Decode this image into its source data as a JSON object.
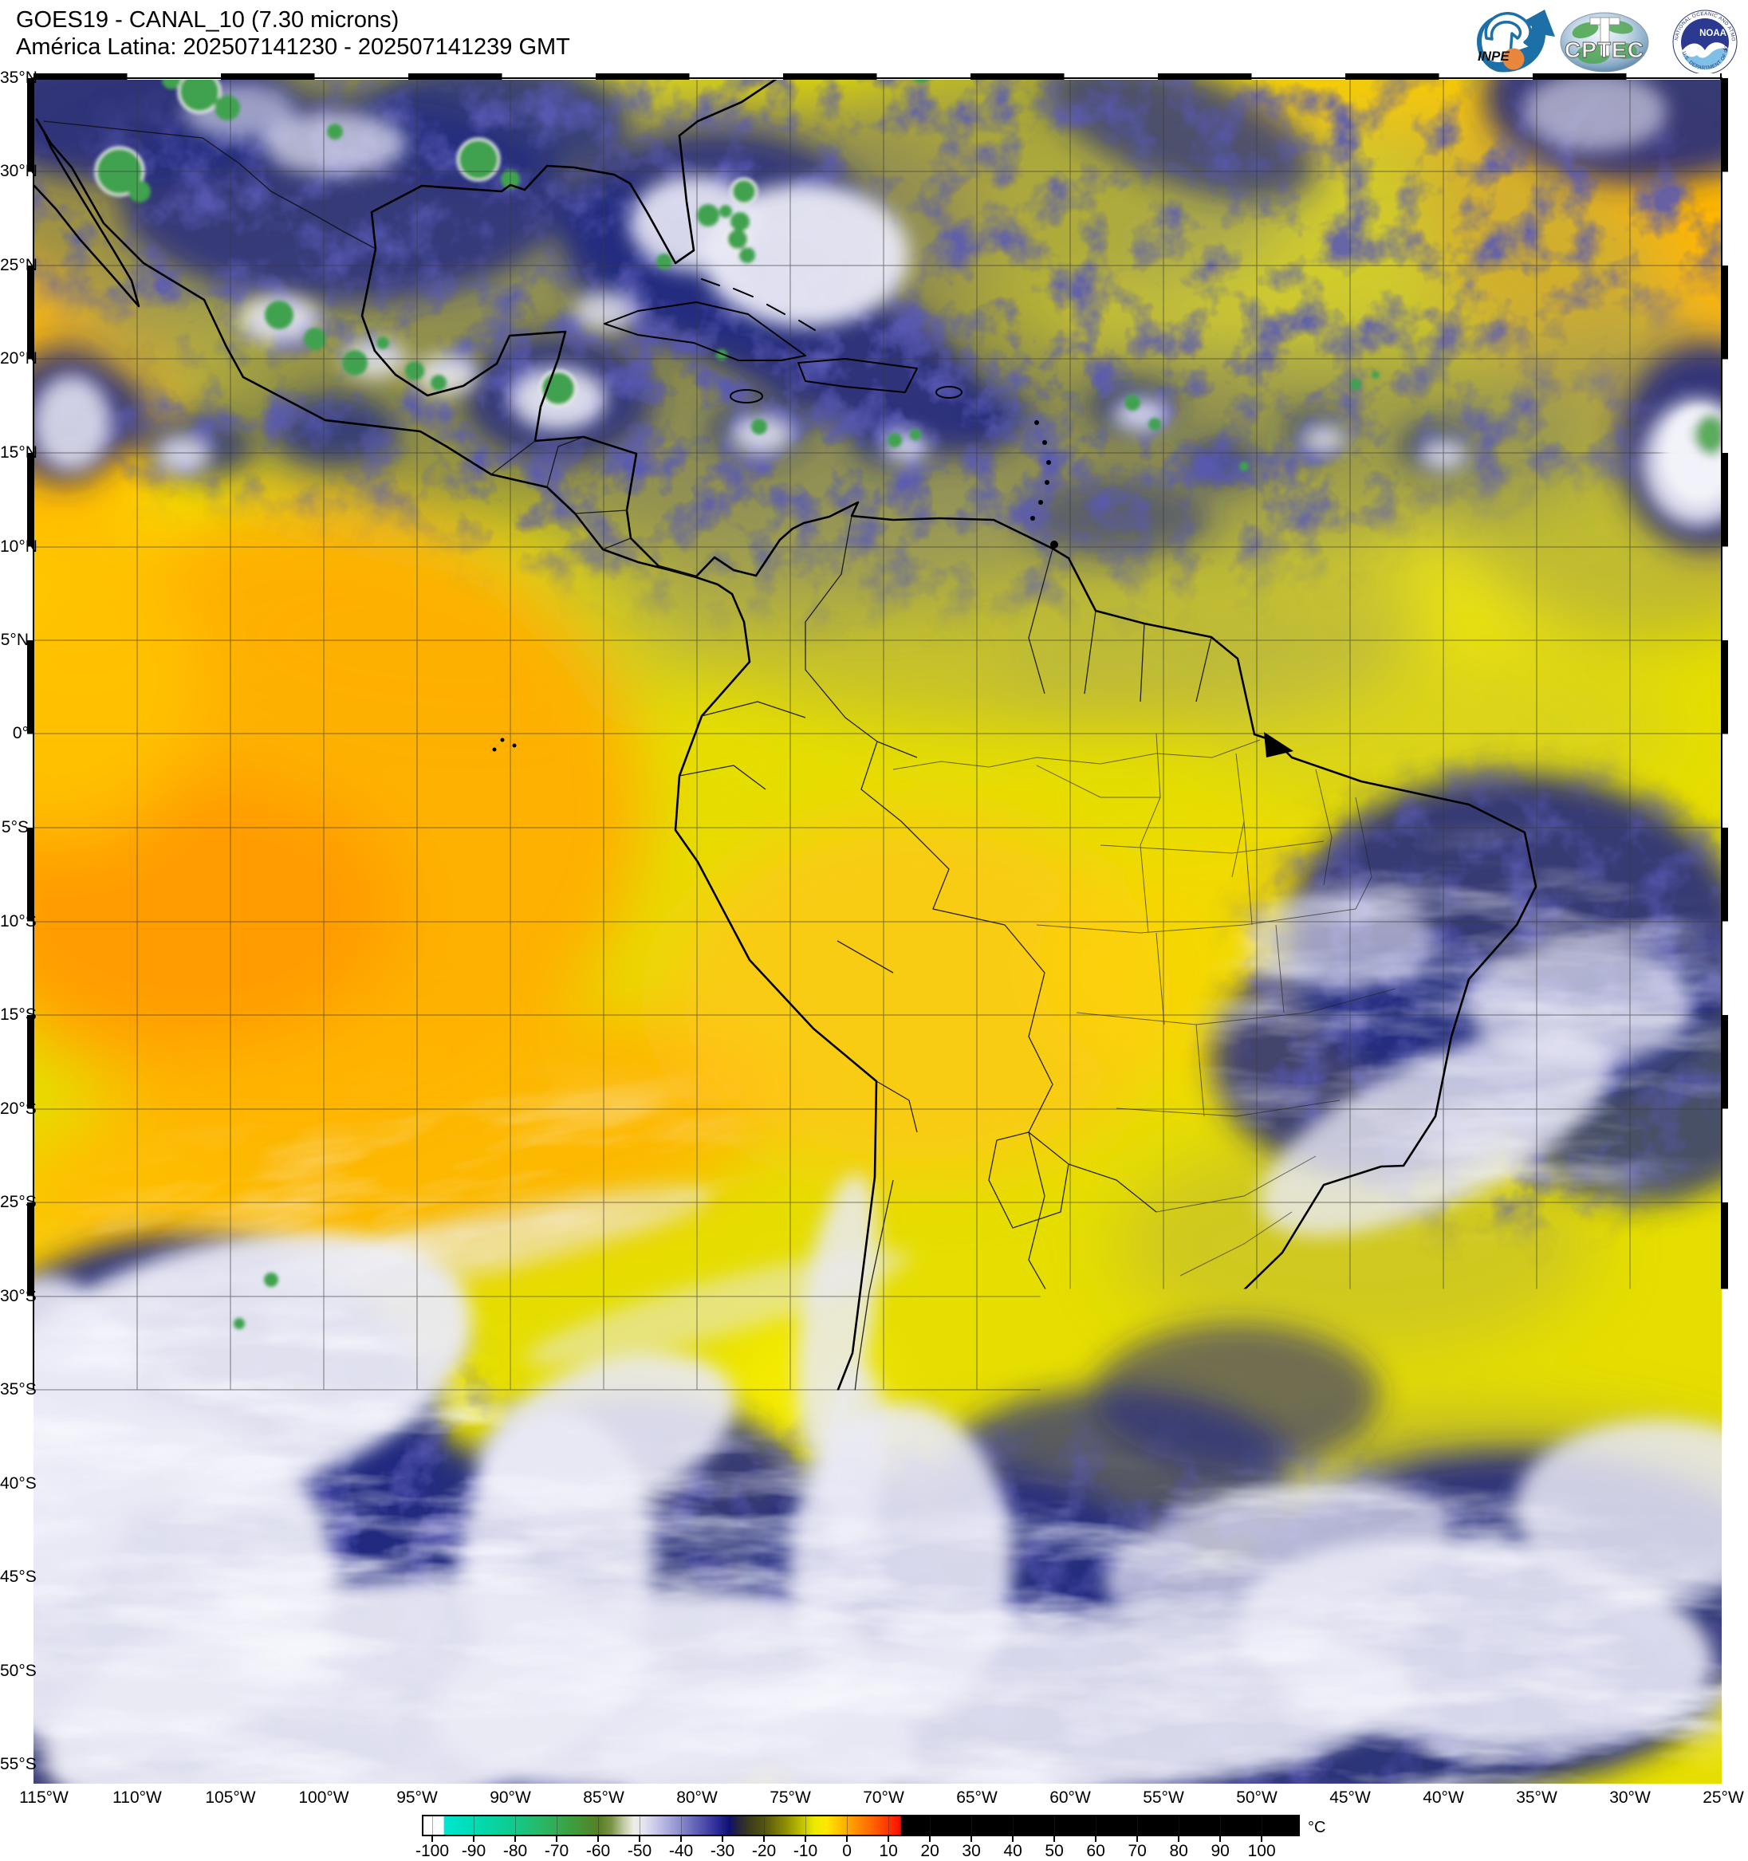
{
  "header": {
    "line1": "GOES19 - CANAL_10 (7.30 microns)",
    "line2": "América Latina: 202507141230 - 202507141239 GMT"
  },
  "logos": {
    "inpe_label": "INPE",
    "cptec_label": "CPTEC",
    "noaa_label": "NOAA",
    "noaa_ring_top": "NATIONAL OCEANIC AND ATMOSPHERIC ADMINISTRATION",
    "noaa_ring_bottom": "U.S. DEPARTMENT OF COMMERCE"
  },
  "map": {
    "lat_labels": [
      "35°N",
      "30°N",
      "25°N",
      "20°N",
      "15°N",
      "10°N",
      "5°N",
      "0°",
      "5°S",
      "10°S",
      "15°S",
      "20°S",
      "25°S",
      "30°S",
      "35°S",
      "40°S",
      "45°S",
      "50°S",
      "55°S"
    ],
    "lon_labels": [
      "115°W",
      "110°W",
      "105°W",
      "100°W",
      "95°W",
      "90°W",
      "85°W",
      "80°W",
      "75°W",
      "70°W",
      "65°W",
      "60°W",
      "55°W",
      "50°W",
      "45°W",
      "40°W",
      "35°W",
      "30°W",
      "25°W"
    ]
  },
  "colorbar": {
    "unit": "°C",
    "ticks": [
      -100,
      -90,
      -80,
      -70,
      -60,
      -50,
      -40,
      -30,
      -20,
      -10,
      0,
      10,
      20,
      30,
      40,
      50,
      60,
      70,
      80,
      90,
      100
    ],
    "value_range": [
      -102.5,
      109.2
    ],
    "stops": [
      {
        "v": -102.5,
        "c": "#ffffff"
      },
      {
        "v": -97.6,
        "c": "#ffffff"
      },
      {
        "v": -97.5,
        "c": "#00e6d0"
      },
      {
        "v": -90,
        "c": "#00dcb4"
      },
      {
        "v": -81,
        "c": "#10cb8d"
      },
      {
        "v": -73,
        "c": "#2cb561"
      },
      {
        "v": -66,
        "c": "#3f9c3c"
      },
      {
        "v": -60,
        "c": "#577f24"
      },
      {
        "v": -57,
        "c": "#7b9447"
      },
      {
        "v": -54,
        "c": "#c2cba4"
      },
      {
        "v": -51.5,
        "c": "#eeeee6"
      },
      {
        "v": -49,
        "c": "#e2e2f0"
      },
      {
        "v": -45,
        "c": "#bcbce4"
      },
      {
        "v": -41,
        "c": "#9494d2"
      },
      {
        "v": -37,
        "c": "#6666b8"
      },
      {
        "v": -33,
        "c": "#3c3ca2"
      },
      {
        "v": -30,
        "c": "#1e1e8e"
      },
      {
        "v": -28.5,
        "c": "#0f0f70"
      },
      {
        "v": -27,
        "c": "#1e1e46"
      },
      {
        "v": -24,
        "c": "#38381f"
      },
      {
        "v": -20,
        "c": "#55550e"
      },
      {
        "v": -15,
        "c": "#8c8c04"
      },
      {
        "v": -11,
        "c": "#c0c000"
      },
      {
        "v": -8,
        "c": "#eaea00"
      },
      {
        "v": -5,
        "c": "#ffe800"
      },
      {
        "v": -2,
        "c": "#ffc400"
      },
      {
        "v": 0,
        "c": "#ffaa00"
      },
      {
        "v": 3,
        "c": "#ff8800"
      },
      {
        "v": 6,
        "c": "#ff6600"
      },
      {
        "v": 9,
        "c": "#ff4000"
      },
      {
        "v": 12,
        "c": "#fc1c00"
      },
      {
        "v": 13,
        "c": "#f00800"
      },
      {
        "v": 13.2,
        "c": "#000000"
      },
      {
        "v": 109.2,
        "c": "#000000"
      }
    ]
  },
  "palette": {
    "base_yellow": "#e6de00",
    "bright_yellow": "#fff500",
    "orange": "#ffae00",
    "deep_orange": "#ff9c00",
    "olive_gray": "#8a8a50",
    "navy_cloud": "#232a80",
    "white_cloud": "#eaeaf6",
    "green_core": "#3fa24f",
    "coastline": "#000000"
  }
}
